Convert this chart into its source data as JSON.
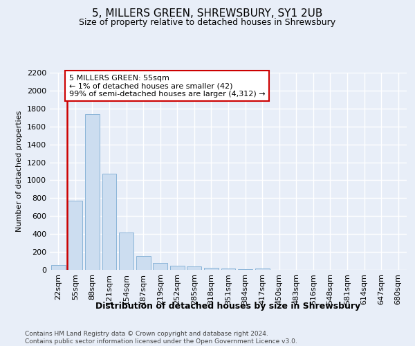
{
  "title": "5, MILLERS GREEN, SHREWSBURY, SY1 2UB",
  "subtitle": "Size of property relative to detached houses in Shrewsbury",
  "xlabel": "Distribution of detached houses by size in Shrewsbury",
  "ylabel": "Number of detached properties",
  "categories": [
    "22sqm",
    "55sqm",
    "88sqm",
    "121sqm",
    "154sqm",
    "187sqm",
    "219sqm",
    "252sqm",
    "285sqm",
    "318sqm",
    "351sqm",
    "384sqm",
    "417sqm",
    "450sqm",
    "483sqm",
    "516sqm",
    "548sqm",
    "581sqm",
    "614sqm",
    "647sqm",
    "680sqm"
  ],
  "bar_values": [
    55,
    770,
    1740,
    1075,
    420,
    155,
    80,
    43,
    37,
    27,
    18,
    10,
    18,
    0,
    0,
    0,
    0,
    0,
    0,
    0,
    0
  ],
  "bar_color": "#ccddf0",
  "bar_edge_color": "#8ab4d8",
  "highlight_color": "#cc0000",
  "ylim_max": 2200,
  "ytick_step": 200,
  "annotation_line1": "5 MILLERS GREEN: 55sqm",
  "annotation_line2": "← 1% of detached houses are smaller (42)",
  "annotation_line3": "99% of semi-detached houses are larger (4,312) →",
  "annotation_box_color": "#cc0000",
  "bg_color": "#e8eef8",
  "grid_color": "#ffffff",
  "title_fontsize": 11,
  "subtitle_fontsize": 9,
  "ylabel_fontsize": 8,
  "xlabel_fontsize": 9,
  "tick_fontsize": 8,
  "annot_fontsize": 8,
  "footer_fontsize": 6.5,
  "footer_text": "Contains HM Land Registry data © Crown copyright and database right 2024.\nContains public sector information licensed under the Open Government Licence v3.0."
}
